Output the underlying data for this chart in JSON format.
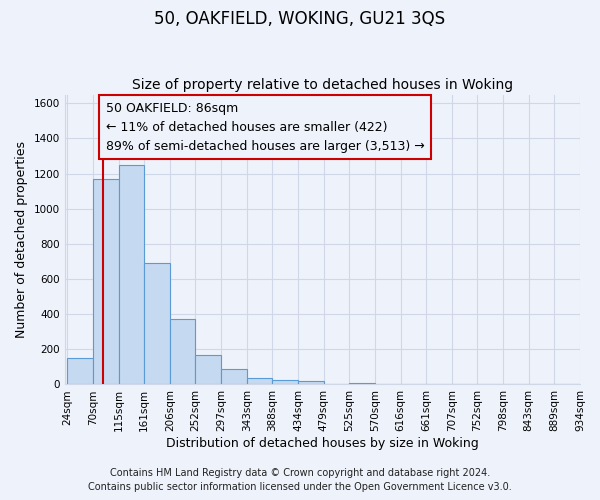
{
  "title": "50, OAKFIELD, WOKING, GU21 3QS",
  "subtitle": "Size of property relative to detached houses in Woking",
  "xlabel": "Distribution of detached houses by size in Woking",
  "ylabel": "Number of detached properties",
  "bin_labels": [
    "24sqm",
    "70sqm",
    "115sqm",
    "161sqm",
    "206sqm",
    "252sqm",
    "297sqm",
    "343sqm",
    "388sqm",
    "434sqm",
    "479sqm",
    "525sqm",
    "570sqm",
    "616sqm",
    "661sqm",
    "707sqm",
    "752sqm",
    "798sqm",
    "843sqm",
    "889sqm",
    "934sqm"
  ],
  "bar_values": [
    150,
    1170,
    1250,
    690,
    370,
    165,
    90,
    35,
    25,
    18,
    0,
    10,
    0,
    0,
    0,
    0,
    0,
    0,
    0,
    0
  ],
  "bar_color": "#c5d9f0",
  "bar_edge_color": "#5b9bd5",
  "vline_x_index": 1.38,
  "vline_color": "#cc0000",
  "annotation_text_line1": "50 OAKFIELD: 86sqm",
  "annotation_text_line2": "← 11% of detached houses are smaller (422)",
  "annotation_text_line3": "89% of semi-detached houses are larger (3,513) →",
  "annotation_box_edge": "#cc0000",
  "ylim": [
    0,
    1650
  ],
  "yticks": [
    0,
    200,
    400,
    600,
    800,
    1000,
    1200,
    1400,
    1600
  ],
  "footer_line1": "Contains HM Land Registry data © Crown copyright and database right 2024.",
  "footer_line2": "Contains public sector information licensed under the Open Government Licence v3.0.",
  "bg_color": "#eef2fa",
  "grid_color": "#d0d8e8",
  "title_fontsize": 12,
  "subtitle_fontsize": 10,
  "axis_label_fontsize": 9,
  "tick_fontsize": 7.5,
  "annotation_fontsize": 9,
  "footer_fontsize": 7
}
